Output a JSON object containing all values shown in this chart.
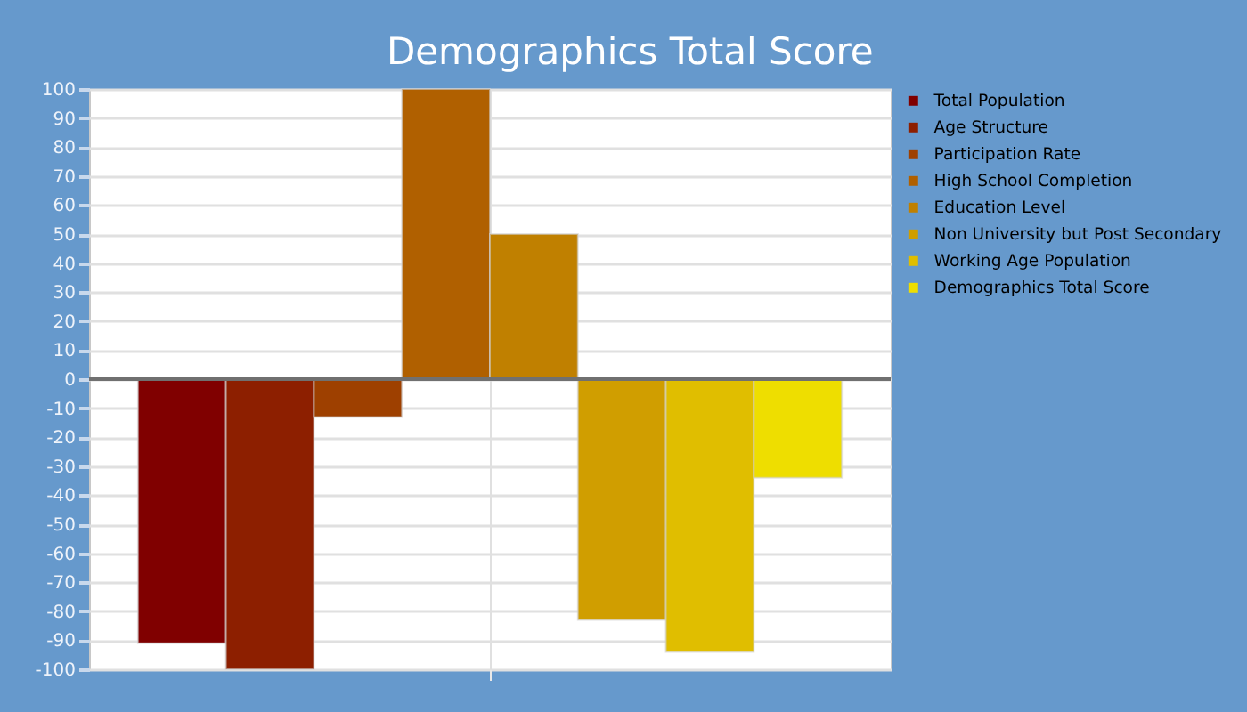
{
  "chart_data": {
    "type": "bar",
    "title": "Demographics Total Score",
    "categories": [
      null
    ],
    "series": [
      {
        "name": "Total Population",
        "color": "#800000",
        "values": [
          -91
        ]
      },
      {
        "name": "Age Structure",
        "color": "#8d1f00",
        "values": [
          -100
        ]
      },
      {
        "name": "Participation Rate",
        "color": "#9e4000",
        "values": [
          -13
        ]
      },
      {
        "name": "High School Completion",
        "color": "#b06000",
        "values": [
          100
        ]
      },
      {
        "name": "Education Level",
        "color": "#c08000",
        "values": [
          50
        ]
      },
      {
        "name": "Non University but Post Secondary",
        "color": "#d09e00",
        "values": [
          -83
        ]
      },
      {
        "name": "Working Age Population",
        "color": "#e0be00",
        "values": [
          -94
        ]
      },
      {
        "name": "Demographics Total Score",
        "color": "#eede00",
        "values": [
          -34
        ]
      }
    ],
    "ylim": [
      -100,
      100
    ],
    "yticks": [
      -100,
      -90,
      -80,
      -70,
      -60,
      -50,
      -40,
      -30,
      -20,
      -10,
      0,
      10,
      20,
      30,
      40,
      50,
      60,
      70,
      80,
      90,
      100
    ],
    "grid": true,
    "legend": "right",
    "ref_lines": [
      {
        "axis": "y",
        "value": 0,
        "color": "#707070"
      }
    ]
  }
}
